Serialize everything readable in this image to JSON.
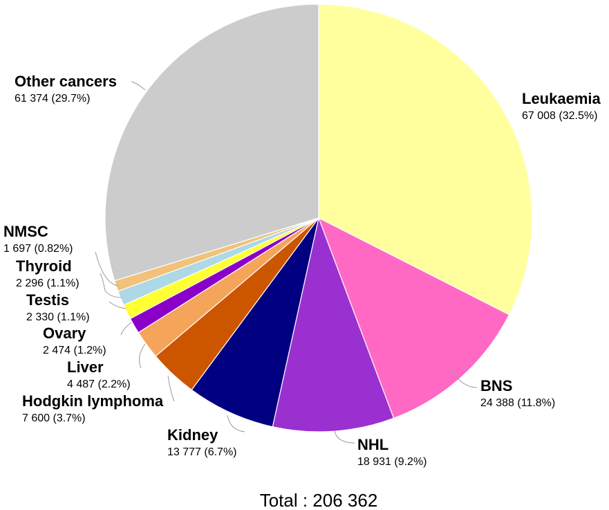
{
  "chart_data": {
    "type": "pie",
    "total_label": "Total : 206 362",
    "start_angle_deg": 0,
    "direction": "clockwise",
    "slices": [
      {
        "name": "Leukaemia",
        "value": 67008,
        "value_label": "67 008 (32.5%)",
        "percent": 32.5,
        "color": "#FFFF9E"
      },
      {
        "name": "BNS",
        "value": 24388,
        "value_label": "24 388 (11.8%)",
        "percent": 11.8,
        "color": "#FF69C4"
      },
      {
        "name": "NHL",
        "value": 18931,
        "value_label": "18 931 (9.2%)",
        "percent": 9.2,
        "color": "#9B30D0"
      },
      {
        "name": "Kidney",
        "value": 13777,
        "value_label": "13 777 (6.7%)",
        "percent": 6.7,
        "color": "#000080"
      },
      {
        "name": "Hodgkin lymphoma",
        "value": 7600,
        "value_label": "7 600 (3.7%)",
        "percent": 3.7,
        "color": "#CC5500"
      },
      {
        "name": "Liver",
        "value": 4487,
        "value_label": "4 487 (2.2%)",
        "percent": 2.2,
        "color": "#F4A55A"
      },
      {
        "name": "Ovary",
        "value": 2474,
        "value_label": "2 474 (1.2%)",
        "percent": 1.2,
        "color": "#8B00C8"
      },
      {
        "name": "Testis",
        "value": 2330,
        "value_label": "2 330 (1.1%)",
        "percent": 1.1,
        "color": "#FFFF33"
      },
      {
        "name": "Thyroid",
        "value": 2296,
        "value_label": "2 296 (1.1%)",
        "percent": 1.1,
        "color": "#ADD8E6"
      },
      {
        "name": "NMSC",
        "value": 1697,
        "value_label": "1 697 (0.82%)",
        "percent": 0.82,
        "color": "#F0C27A"
      },
      {
        "name": "Other cancers",
        "value": 61374,
        "value_label": "61 374 (29.7%)",
        "percent": 29.7,
        "color": "#CCCCCC"
      }
    ]
  }
}
